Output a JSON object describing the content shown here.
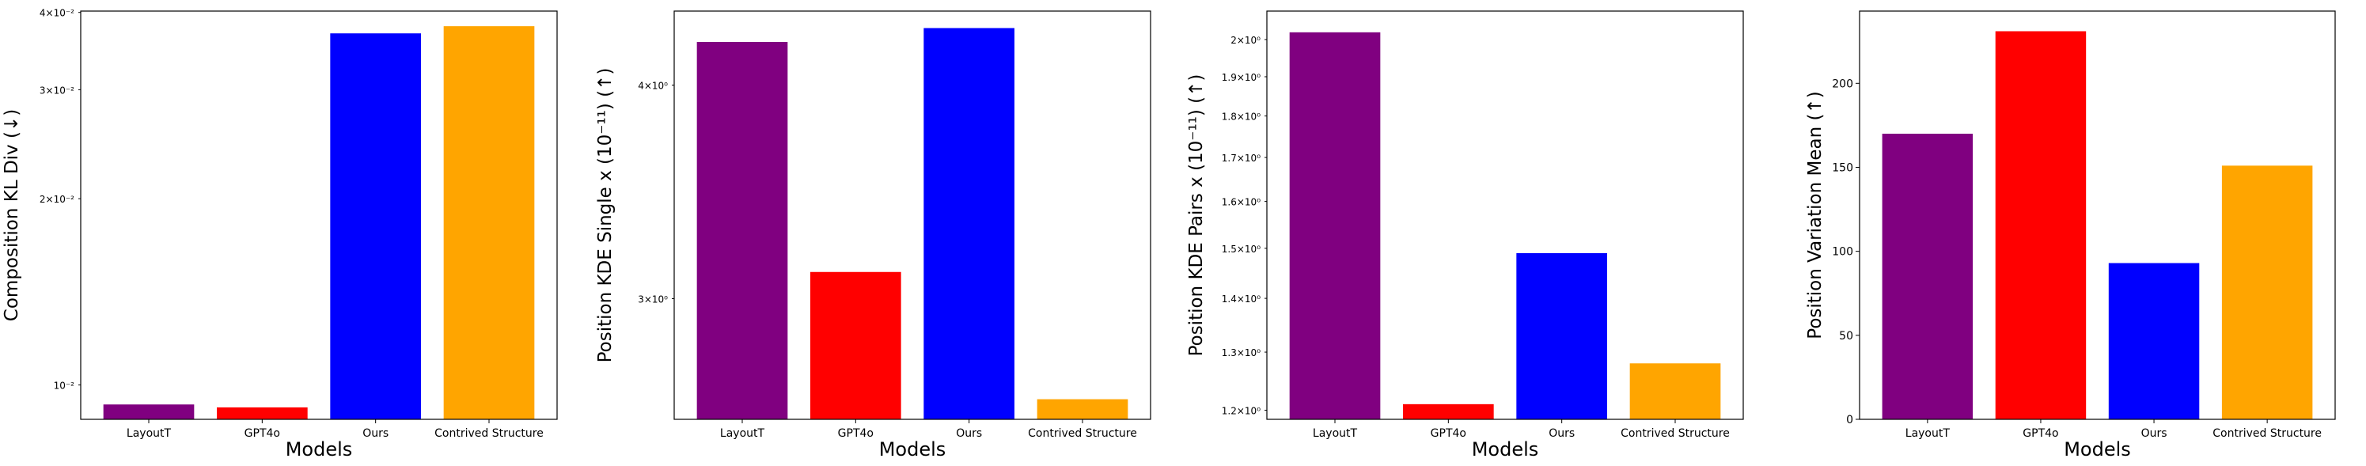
{
  "chart_data": [
    {
      "type": "bar",
      "categories": [
        "LayoutT",
        "GPT4o",
        "Ours",
        "Contrived Structure"
      ],
      "values": [
        0.0093,
        0.0092,
        0.037,
        0.038
      ],
      "colors": [
        "#800080",
        "#ff0000",
        "#0000ff",
        "#ffa500"
      ],
      "xlabel": "Models",
      "ylabel": "Composition KL Div (↓)",
      "yscale": "log",
      "ylim": [
        0.0088,
        0.0402
      ],
      "ytick_values": [
        0.01,
        0.02,
        0.03,
        0.04
      ],
      "ytick_labels": [
        "10⁻²",
        "2×10⁻²",
        "3×10⁻²",
        "4×10⁻²"
      ],
      "ytick_style": "minor",
      "grid": false,
      "legend": "none"
    },
    {
      "type": "bar",
      "categories": [
        "LayoutT",
        "GPT4o",
        "Ours",
        "Contrived Structure"
      ],
      "values": [
        4.24,
        3.11,
        4.32,
        2.62
      ],
      "colors": [
        "#800080",
        "#ff0000",
        "#0000ff",
        "#ffa500"
      ],
      "xlabel": "Models",
      "ylabel": "Position KDE Single x (10⁻¹¹) (↑)",
      "yscale": "log",
      "ylim": [
        2.55,
        4.42
      ],
      "ytick_values": [
        3,
        4
      ],
      "ytick_labels": [
        "3×10⁰",
        "4×10⁰"
      ],
      "ytick_style": "minor",
      "grid": false,
      "legend": "none"
    },
    {
      "type": "bar",
      "categories": [
        "LayoutT",
        "GPT4o",
        "Ours",
        "Contrived Structure"
      ],
      "values": [
        2.02,
        1.21,
        1.49,
        1.28
      ],
      "colors": [
        "#800080",
        "#ff0000",
        "#0000ff",
        "#ffa500"
      ],
      "xlabel": "Models",
      "ylabel": "Position KDE Pairs x (10⁻¹¹) (↑)",
      "yscale": "log",
      "ylim": [
        1.185,
        2.08
      ],
      "ytick_values": [
        1.2,
        1.3,
        1.4,
        1.5,
        1.6,
        1.7,
        1.8,
        1.9,
        2.0
      ],
      "ytick_labels": [
        "1.2×10⁰",
        "1.3×10⁰",
        "1.4×10⁰",
        "1.5×10⁰",
        "1.6×10⁰",
        "1.7×10⁰",
        "1.8×10⁰",
        "1.9×10⁰",
        "2×10⁰"
      ],
      "ytick_style": "minor",
      "grid": false,
      "legend": "none"
    },
    {
      "type": "bar",
      "categories": [
        "LayoutT",
        "GPT4o",
        "Ours",
        "Contrived Structure"
      ],
      "values": [
        170,
        231,
        93,
        151
      ],
      "colors": [
        "#800080",
        "#ff0000",
        "#0000ff",
        "#ffa500"
      ],
      "xlabel": "Models",
      "ylabel": "Position Variation Mean (↑)",
      "yscale": "linear",
      "ylim": [
        0,
        243
      ],
      "ytick_values": [
        0,
        50,
        100,
        150,
        200
      ],
      "ytick_labels": [
        "0",
        "50",
        "100",
        "150",
        "200"
      ],
      "ytick_style": "major",
      "grid": false,
      "legend": "none"
    }
  ]
}
